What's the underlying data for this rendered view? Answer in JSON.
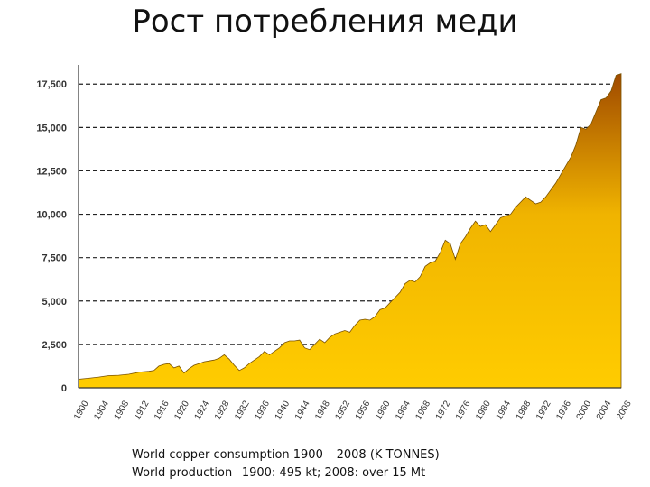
{
  "slide": {
    "title": "Рост потребления меди",
    "caption_line1": "World copper consumption 1900 – 2008 (K TONNES)",
    "caption_line2": "World production –1900: 495 kt; 2008: over 15 Mt"
  },
  "chart_data": {
    "type": "area",
    "title": "",
    "xlabel": "",
    "ylabel": "",
    "xlim": [
      1900,
      2008
    ],
    "ylim": [
      0,
      18500
    ],
    "y_ticks": [
      0,
      2500,
      5000,
      7500,
      10000,
      12500,
      15000,
      17500
    ],
    "y_tick_labels": [
      "0",
      "2,500",
      "5,000",
      "7,500",
      "10,000",
      "12,500",
      "15,000",
      "17,500"
    ],
    "x_ticks": [
      1900,
      1904,
      1908,
      1912,
      1916,
      1920,
      1924,
      1928,
      1932,
      1936,
      1940,
      1944,
      1948,
      1952,
      1956,
      1960,
      1964,
      1968,
      1972,
      1976,
      1980,
      1984,
      1988,
      1992,
      1996,
      2000,
      2004,
      2008
    ],
    "grid": "horizontal dashed",
    "colors": {
      "fill_bottom": "#ffcc00",
      "fill_top": "#a04a00",
      "outline": "#7a5200",
      "grid": "#222222",
      "axis": "#333333"
    },
    "series": [
      {
        "x": [
          1900,
          1902,
          1904,
          1906,
          1908,
          1910,
          1912,
          1914,
          1915,
          1916,
          1917,
          1918,
          1919,
          1920,
          1921,
          1922,
          1923,
          1924,
          1925,
          1926,
          1927,
          1928,
          1929,
          1930,
          1931,
          1932,
          1933,
          1934,
          1935,
          1936,
          1937,
          1938,
          1939,
          1940,
          1941,
          1942,
          1943,
          1944,
          1945,
          1946,
          1947,
          1948,
          1949,
          1950,
          1951,
          1952,
          1953,
          1954,
          1955,
          1956,
          1957,
          1958,
          1959,
          1960,
          1961,
          1962,
          1963,
          1964,
          1965,
          1966,
          1967,
          1968,
          1969,
          1970,
          1971,
          1972,
          1973,
          1974,
          1975,
          1976,
          1977,
          1978,
          1979,
          1980,
          1981,
          1982,
          1983,
          1984,
          1985,
          1986,
          1987,
          1988,
          1989,
          1990,
          1991,
          1992,
          1993,
          1994,
          1995,
          1996,
          1997,
          1998,
          1999,
          2000,
          2001,
          2002,
          2003,
          2004,
          2005,
          2006,
          2007,
          2008
        ],
        "values": [
          495,
          550,
          620,
          700,
          720,
          780,
          900,
          950,
          1000,
          1250,
          1350,
          1400,
          1150,
          1250,
          850,
          1100,
          1300,
          1400,
          1500,
          1550,
          1600,
          1700,
          1900,
          1650,
          1300,
          1000,
          1150,
          1400,
          1600,
          1800,
          2100,
          1900,
          2100,
          2300,
          2600,
          2700,
          2700,
          2750,
          2300,
          2200,
          2500,
          2800,
          2600,
          2900,
          3100,
          3200,
          3300,
          3200,
          3600,
          3900,
          3950,
          3900,
          4100,
          4500,
          4600,
          4900,
          5200,
          5500,
          6000,
          6200,
          6100,
          6400,
          7000,
          7200,
          7300,
          7800,
          8500,
          8300,
          7400,
          8300,
          8700,
          9200,
          9600,
          9300,
          9400,
          9000,
          9400,
          9800,
          9900,
          10000,
          10400,
          10700,
          11000,
          10800,
          10600,
          10700,
          11000,
          11400,
          11800,
          12300,
          12800,
          13300,
          14000,
          15000,
          14900,
          15200,
          15900,
          16600,
          16700,
          17100,
          18000,
          18100
        ]
      }
    ]
  }
}
